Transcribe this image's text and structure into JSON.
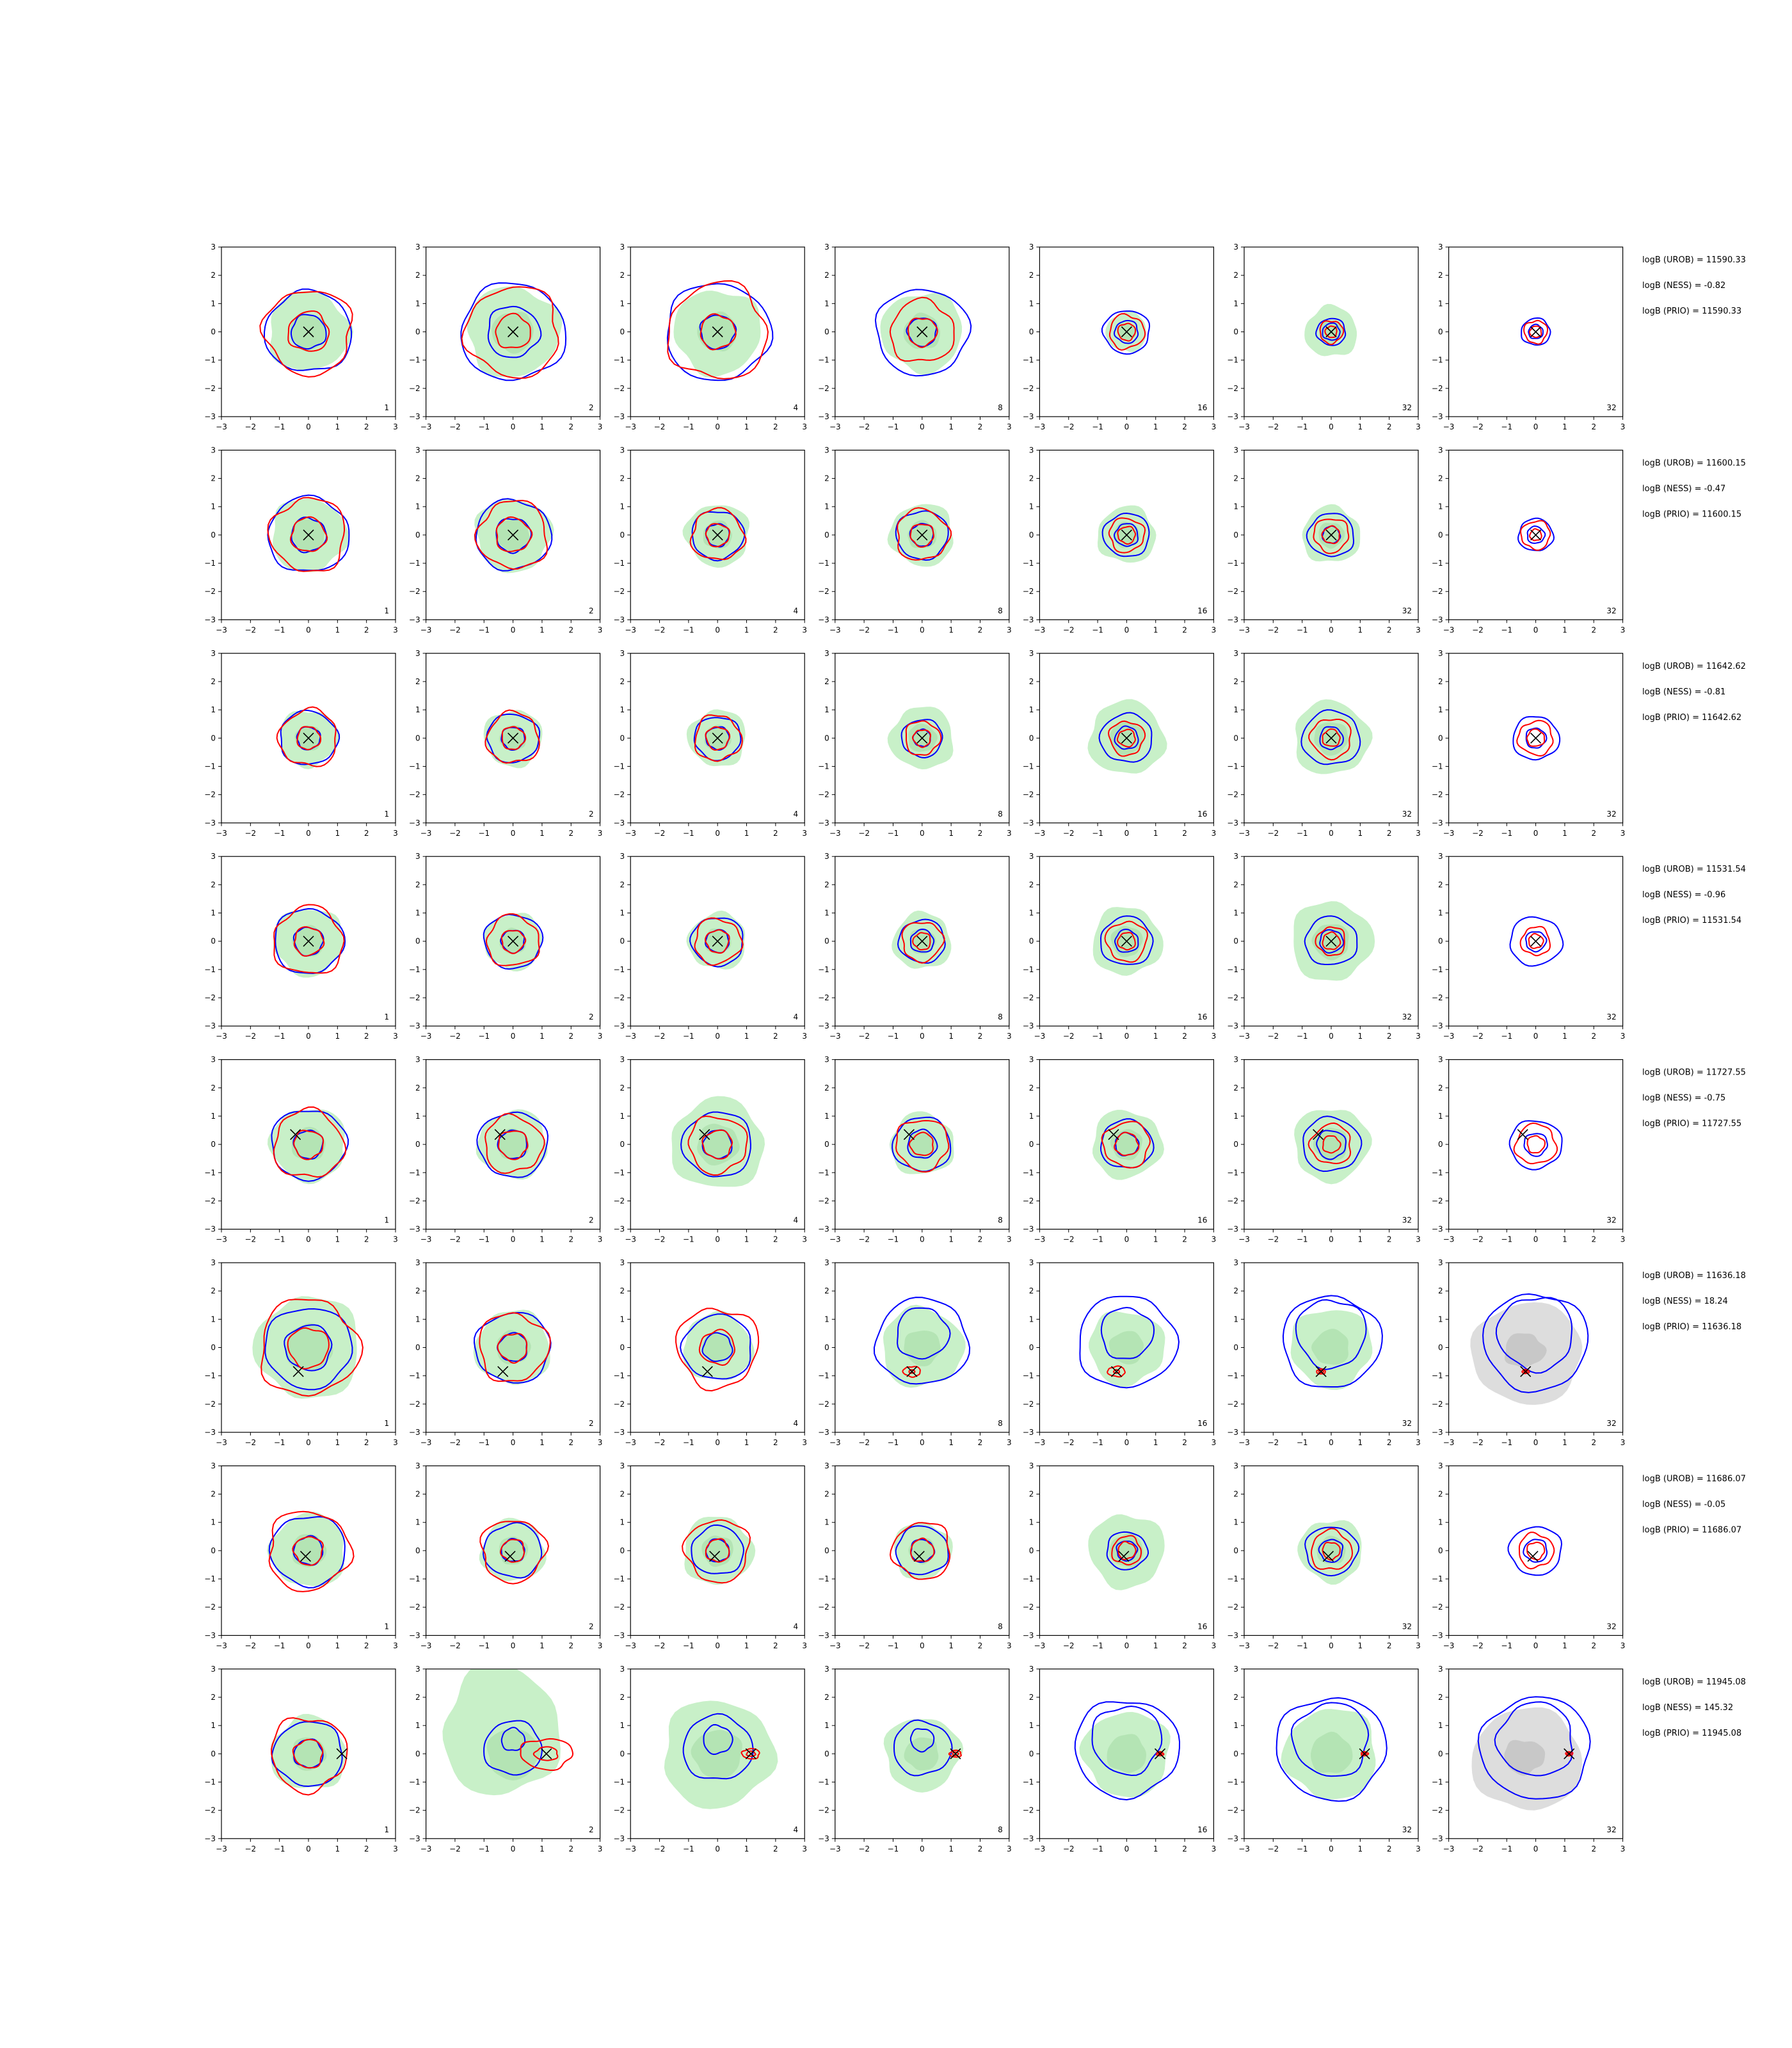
{
  "figure": {
    "description": "8x7 grid of 2D contour panels"
  },
  "chart_data": {
    "type": "contour-grid",
    "xlim": [
      -3,
      3
    ],
    "ylim": [
      -3,
      3
    ],
    "xticks": [
      "−3",
      "−2",
      "−1",
      "0",
      "1",
      "2",
      "3"
    ],
    "yticks": [
      "3",
      "2",
      "1",
      "0",
      "−1",
      "−2",
      "−3"
    ],
    "columns": [
      "1",
      "2",
      "4",
      "8",
      "16",
      "32",
      "32"
    ],
    "colors": {
      "fill_green": "#c8f0c8",
      "fill_gray": "#bbbbbb",
      "blue": "#0000ff",
      "red": "#ff0000",
      "marker": "#000000"
    },
    "rows": [
      {
        "annotations": [
          "logB (UROB) = 11590.33",
          "logB (NESS) = -0.82",
          "logB (PRIO) = 11590.33"
        ],
        "marker": [
          0,
          0
        ],
        "panels": [
          {
            "green": 1.4,
            "blue": [
              1.5,
              0.6
            ],
            "red": [
              1.5,
              0.7
            ]
          },
          {
            "green": 1.6,
            "blue": [
              1.8,
              0.9
            ],
            "red": [
              1.6,
              0.6
            ]
          },
          {
            "green": 1.5,
            "blue": [
              1.8,
              0.6
            ],
            "red": [
              1.7,
              0.6
            ]
          },
          {
            "green": 1.4,
            "blue": [
              1.6,
              0.5
            ],
            "red": [
              1.1,
              0.5
            ]
          },
          {
            "green": 0.7,
            "blue": [
              0.8,
              0.4
            ],
            "red": [
              0.6,
              0.3
            ]
          },
          {
            "green": 0.9,
            "blue": [
              0.5,
              0.3
            ],
            "red": [
              0.4,
              0.2
            ]
          },
          {
            "green": 0,
            "blue": [
              0.5,
              0.25
            ],
            "red": [
              0.4,
              0.2
            ]
          }
        ]
      },
      {
        "annotations": [
          "logB (UROB) = 11600.15",
          "logB (NESS) = -0.47",
          "logB (PRIO) = 11600.15"
        ],
        "marker": [
          0,
          0
        ],
        "panels": [
          {
            "green": 1.3,
            "blue": [
              1.4,
              0.6
            ],
            "red": [
              1.3,
              0.6
            ]
          },
          {
            "green": 1.3,
            "blue": [
              1.3,
              0.6
            ],
            "red": [
              1.2,
              0.6
            ]
          },
          {
            "green": 1.1,
            "blue": [
              0.9,
              0.4
            ],
            "red": [
              0.9,
              0.4
            ]
          },
          {
            "green": 1.1,
            "blue": [
              0.9,
              0.4
            ],
            "red": [
              0.9,
              0.4
            ]
          },
          {
            "green": 1.0,
            "blue": [
              0.8,
              0.4
            ],
            "red": [
              0.6,
              0.3
            ]
          },
          {
            "green": 1.0,
            "blue": [
              0.8,
              0.3
            ],
            "red": [
              0.6,
              0.3
            ]
          },
          {
            "green": 0,
            "blue": [
              0.6,
              0.3
            ],
            "red": [
              0.5,
              0.2
            ]
          }
        ]
      },
      {
        "annotations": [
          "logB (UROB) = 11642.62",
          "logB (NESS) = -0.81",
          "logB (PRIO) = 11642.62"
        ],
        "marker": [
          0,
          0
        ],
        "panels": [
          {
            "green": 1.0,
            "blue": [
              1.0,
              0.4
            ],
            "red": [
              1.0,
              0.4
            ]
          },
          {
            "green": 1.0,
            "blue": [
              0.9,
              0.4
            ],
            "red": [
              0.9,
              0.4
            ]
          },
          {
            "green": 1.0,
            "blue": [
              0.8,
              0.4
            ],
            "red": [
              0.8,
              0.4
            ]
          },
          {
            "green": 1.1,
            "blue": [
              0.7,
              0.3
            ],
            "red": [
              0.6,
              0.3
            ]
          },
          {
            "green": 1.3,
            "blue": [
              0.9,
              0.4
            ],
            "red": [
              0.6,
              0.3
            ]
          },
          {
            "green": 1.3,
            "blue": [
              1.0,
              0.4
            ],
            "red": [
              0.7,
              0.3
            ]
          },
          {
            "green": 0,
            "blue": [
              0.8,
              0.35
            ],
            "red": [
              0.6,
              0.3
            ]
          }
        ]
      },
      {
        "annotations": [
          "logB (UROB) = 11531.54",
          "logB (NESS) = -0.96",
          "logB (PRIO) = 11531.54"
        ],
        "marker": [
          0,
          0
        ],
        "panels": [
          {
            "green": 1.2,
            "blue": [
              1.2,
              0.5
            ],
            "red": [
              1.2,
              0.5
            ]
          },
          {
            "green": 1.0,
            "blue": [
              1.0,
              0.4
            ],
            "red": [
              0.9,
              0.4
            ]
          },
          {
            "green": 1.0,
            "blue": [
              0.9,
              0.4
            ],
            "red": [
              0.8,
              0.4
            ]
          },
          {
            "green": 1.0,
            "blue": [
              0.8,
              0.4
            ],
            "red": [
              0.7,
              0.3
            ]
          },
          {
            "green": 1.2,
            "blue": [
              0.9,
              0.4
            ],
            "red": [
              0.7,
              0.3
            ]
          },
          {
            "green": 1.4,
            "blue": [
              0.9,
              0.4
            ],
            "red": [
              0.5,
              0.3
            ]
          },
          {
            "green": 0,
            "blue": [
              0.9,
              0.35
            ],
            "red": [
              0.5,
              0.25
            ]
          }
        ]
      },
      {
        "annotations": [
          "logB (UROB) = 11727.55",
          "logB (NESS) = -0.75",
          "logB (PRIO) = 11727.55"
        ],
        "marker": [
          -0.45,
          0.35
        ],
        "panels": [
          {
            "green": 1.3,
            "blue": [
              1.3,
              0.5
            ],
            "red": [
              1.2,
              0.5
            ]
          },
          {
            "green": 1.2,
            "blue": [
              1.2,
              0.5
            ],
            "red": [
              1.0,
              0.5
            ]
          },
          {
            "green": 1.6,
            "blue": [
              1.2,
              0.5
            ],
            "red": [
              1.0,
              0.5
            ]
          },
          {
            "green": 1.1,
            "blue": [
              1.0,
              0.5
            ],
            "red": [
              0.9,
              0.4
            ]
          },
          {
            "green": 1.2,
            "blue": [
              0.9,
              0.4
            ],
            "red": [
              0.8,
              0.4
            ]
          },
          {
            "green": 1.3,
            "blue": [
              1.0,
              0.5
            ],
            "red": [
              0.7,
              0.3
            ]
          },
          {
            "green": 0,
            "blue": [
              0.9,
              0.4
            ],
            "red": [
              0.7,
              0.3
            ]
          }
        ]
      },
      {
        "annotations": [
          "logB (UROB) = 11636.18",
          "logB (NESS) = 18.24",
          "logB (PRIO) = 11636.18"
        ],
        "marker": [
          -0.35,
          -0.85
        ],
        "panels": [
          {
            "green": 1.8,
            "blue": [
              1.5,
              0.8
            ],
            "red": [
              1.7,
              0.7
            ]
          },
          {
            "green": 1.3,
            "blue": [
              1.3,
              0.5
            ],
            "red": [
              1.2,
              0.5
            ]
          },
          {
            "green": 1.2,
            "blue": [
              1.2,
              0.5
            ],
            "red": [
              1.4,
              0.6
            ]
          },
          {
            "green": 1.4,
            "blue": [
              1.6,
              0.9
            ],
            "red": [
              0.3,
              0.1
            ]
          },
          {
            "green": 1.3,
            "blue": [
              1.7,
              0.9
            ],
            "red": [
              0.3,
              0.1
            ]
          },
          {
            "green": 1.4,
            "blue": [
              1.7,
              1.2
            ],
            "red": [
              0.15,
              0.08
            ]
          },
          {
            "green": 0,
            "blue": [
              1.8,
              1.3
            ],
            "red": [
              0.12,
              0.06
            ]
          }
        ]
      },
      {
        "annotations": [
          "logB (UROB) = 11686.07",
          "logB (NESS) = -0.05",
          "logB (PRIO) = 11686.07"
        ],
        "marker": [
          -0.1,
          -0.2
        ],
        "panels": [
          {
            "green": 1.3,
            "blue": [
              1.3,
              0.5
            ],
            "red": [
              1.4,
              0.5
            ]
          },
          {
            "green": 1.1,
            "blue": [
              1.0,
              0.4
            ],
            "red": [
              1.1,
              0.4
            ]
          },
          {
            "green": 1.2,
            "blue": [
              0.9,
              0.4
            ],
            "red": [
              1.1,
              0.4
            ]
          },
          {
            "green": 1.0,
            "blue": [
              0.9,
              0.4
            ],
            "red": [
              1.0,
              0.4
            ]
          },
          {
            "green": 1.3,
            "blue": [
              0.7,
              0.35
            ],
            "red": [
              0.5,
              0.3
            ]
          },
          {
            "green": 1.1,
            "blue": [
              0.9,
              0.4
            ],
            "red": [
              0.7,
              0.3
            ]
          },
          {
            "green": 0,
            "blue": [
              0.9,
              0.4
            ],
            "red": [
              0.6,
              0.3
            ]
          }
        ]
      },
      {
        "annotations": [
          "logB (UROB) = 11945.08",
          "logB (NESS) = 145.32",
          "logB (PRIO) = 11945.08"
        ],
        "marker": [
          1.15,
          0
        ],
        "panels": [
          {
            "green": 1.3,
            "blue": [
              1.2,
              0.5
            ],
            "red": [
              1.3,
              0.5
            ]
          },
          {
            "green": 2.0,
            "blue": [
              1.0,
              0.4
            ],
            "red": [
              0.9,
              0.4
            ]
          },
          {
            "green": 1.9,
            "blue": [
              1.2,
              0.5
            ],
            "red": [
              0.3,
              0.15
            ]
          },
          {
            "green": 1.3,
            "blue": [
              1.0,
              0.4
            ],
            "red": [
              0.2,
              0.1
            ]
          },
          {
            "green": 1.5,
            "blue": [
              1.8,
              1.2
            ],
            "red": [
              0.12,
              0.06
            ]
          },
          {
            "green": 1.6,
            "blue": [
              1.9,
              1.3
            ],
            "red": [
              0.12,
              0.06
            ]
          },
          {
            "green": 0,
            "blue": [
              1.9,
              1.3
            ],
            "red": [
              0.12,
              0.06
            ]
          }
        ]
      }
    ]
  }
}
